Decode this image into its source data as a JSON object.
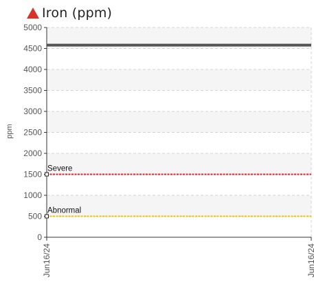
{
  "header": {
    "title": "Iron (ppm)",
    "alert_icon": "warning-triangle-icon",
    "alert_color": "#d9322b"
  },
  "chart_data": {
    "type": "line",
    "title": "Iron (ppm)",
    "xlabel": "",
    "ylabel": "ppm",
    "ylim": [
      0,
      5000
    ],
    "yticks": [
      0,
      500,
      1000,
      1500,
      2000,
      2500,
      3000,
      3500,
      4000,
      4500,
      5000
    ],
    "x_tick_labels": [
      "Jun16/24",
      "Jun16/24"
    ],
    "grid": true,
    "series": [
      {
        "values": [
          4580,
          4580
        ],
        "color": "#555555"
      }
    ],
    "thresholds": [
      {
        "name": "Severe",
        "value": 1500,
        "color": "#e0242b"
      },
      {
        "name": "Abnormal",
        "value": 500,
        "color": "#f2c200"
      }
    ]
  }
}
